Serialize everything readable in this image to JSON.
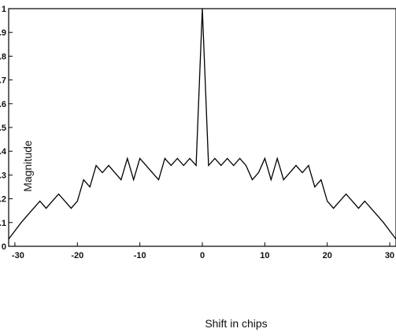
{
  "chart_data": {
    "type": "line",
    "title": "",
    "xlabel": "Shift in chips",
    "ylabel": "Magnitude",
    "xlim": [
      -31,
      31
    ],
    "ylim": [
      0,
      1
    ],
    "xticks": [
      -30,
      -20,
      -10,
      0,
      10,
      20,
      30
    ],
    "xtick_labels": [
      "-30",
      "-20",
      "-10",
      "0",
      "10",
      "20",
      "30"
    ],
    "yticks": [
      0,
      0.1,
      0.2,
      0.3,
      0.4,
      0.5,
      0.6,
      0.7,
      0.8,
      0.9,
      1
    ],
    "ytick_labels": [
      "0",
      "0.1",
      "0.2",
      "0.3",
      "0.4",
      "0.5",
      "0.6",
      "0.7",
      "0.8",
      "0.9",
      "1"
    ],
    "grid": false,
    "series": [
      {
        "color": "#000000",
        "x": [
          -31,
          -29,
          -28,
          -27,
          -26,
          -25,
          -24,
          -23,
          -22,
          -21,
          -20,
          -19,
          -18,
          -17,
          -16,
          -15,
          -14,
          -13,
          -12,
          -11,
          -10,
          -9,
          -8,
          -7,
          -6,
          -5,
          -4,
          -3,
          -2,
          -1,
          0,
          1,
          2,
          3,
          4,
          5,
          6,
          7,
          8,
          9,
          10,
          11,
          12,
          13,
          14,
          15,
          16,
          17,
          18,
          19,
          20,
          21,
          22,
          23,
          24,
          25,
          26,
          27,
          28,
          29,
          31
        ],
        "y": [
          0.03,
          0.1,
          0.13,
          0.16,
          0.19,
          0.16,
          0.19,
          0.22,
          0.19,
          0.16,
          0.19,
          0.28,
          0.25,
          0.34,
          0.31,
          0.34,
          0.31,
          0.28,
          0.37,
          0.28,
          0.37,
          0.34,
          0.31,
          0.28,
          0.37,
          0.34,
          0.37,
          0.34,
          0.37,
          0.34,
          1.0,
          0.34,
          0.37,
          0.34,
          0.37,
          0.34,
          0.37,
          0.34,
          0.28,
          0.31,
          0.37,
          0.28,
          0.37,
          0.28,
          0.31,
          0.34,
          0.31,
          0.34,
          0.25,
          0.28,
          0.19,
          0.16,
          0.19,
          0.22,
          0.19,
          0.16,
          0.19,
          0.16,
          0.13,
          0.1,
          0.03
        ]
      }
    ]
  }
}
